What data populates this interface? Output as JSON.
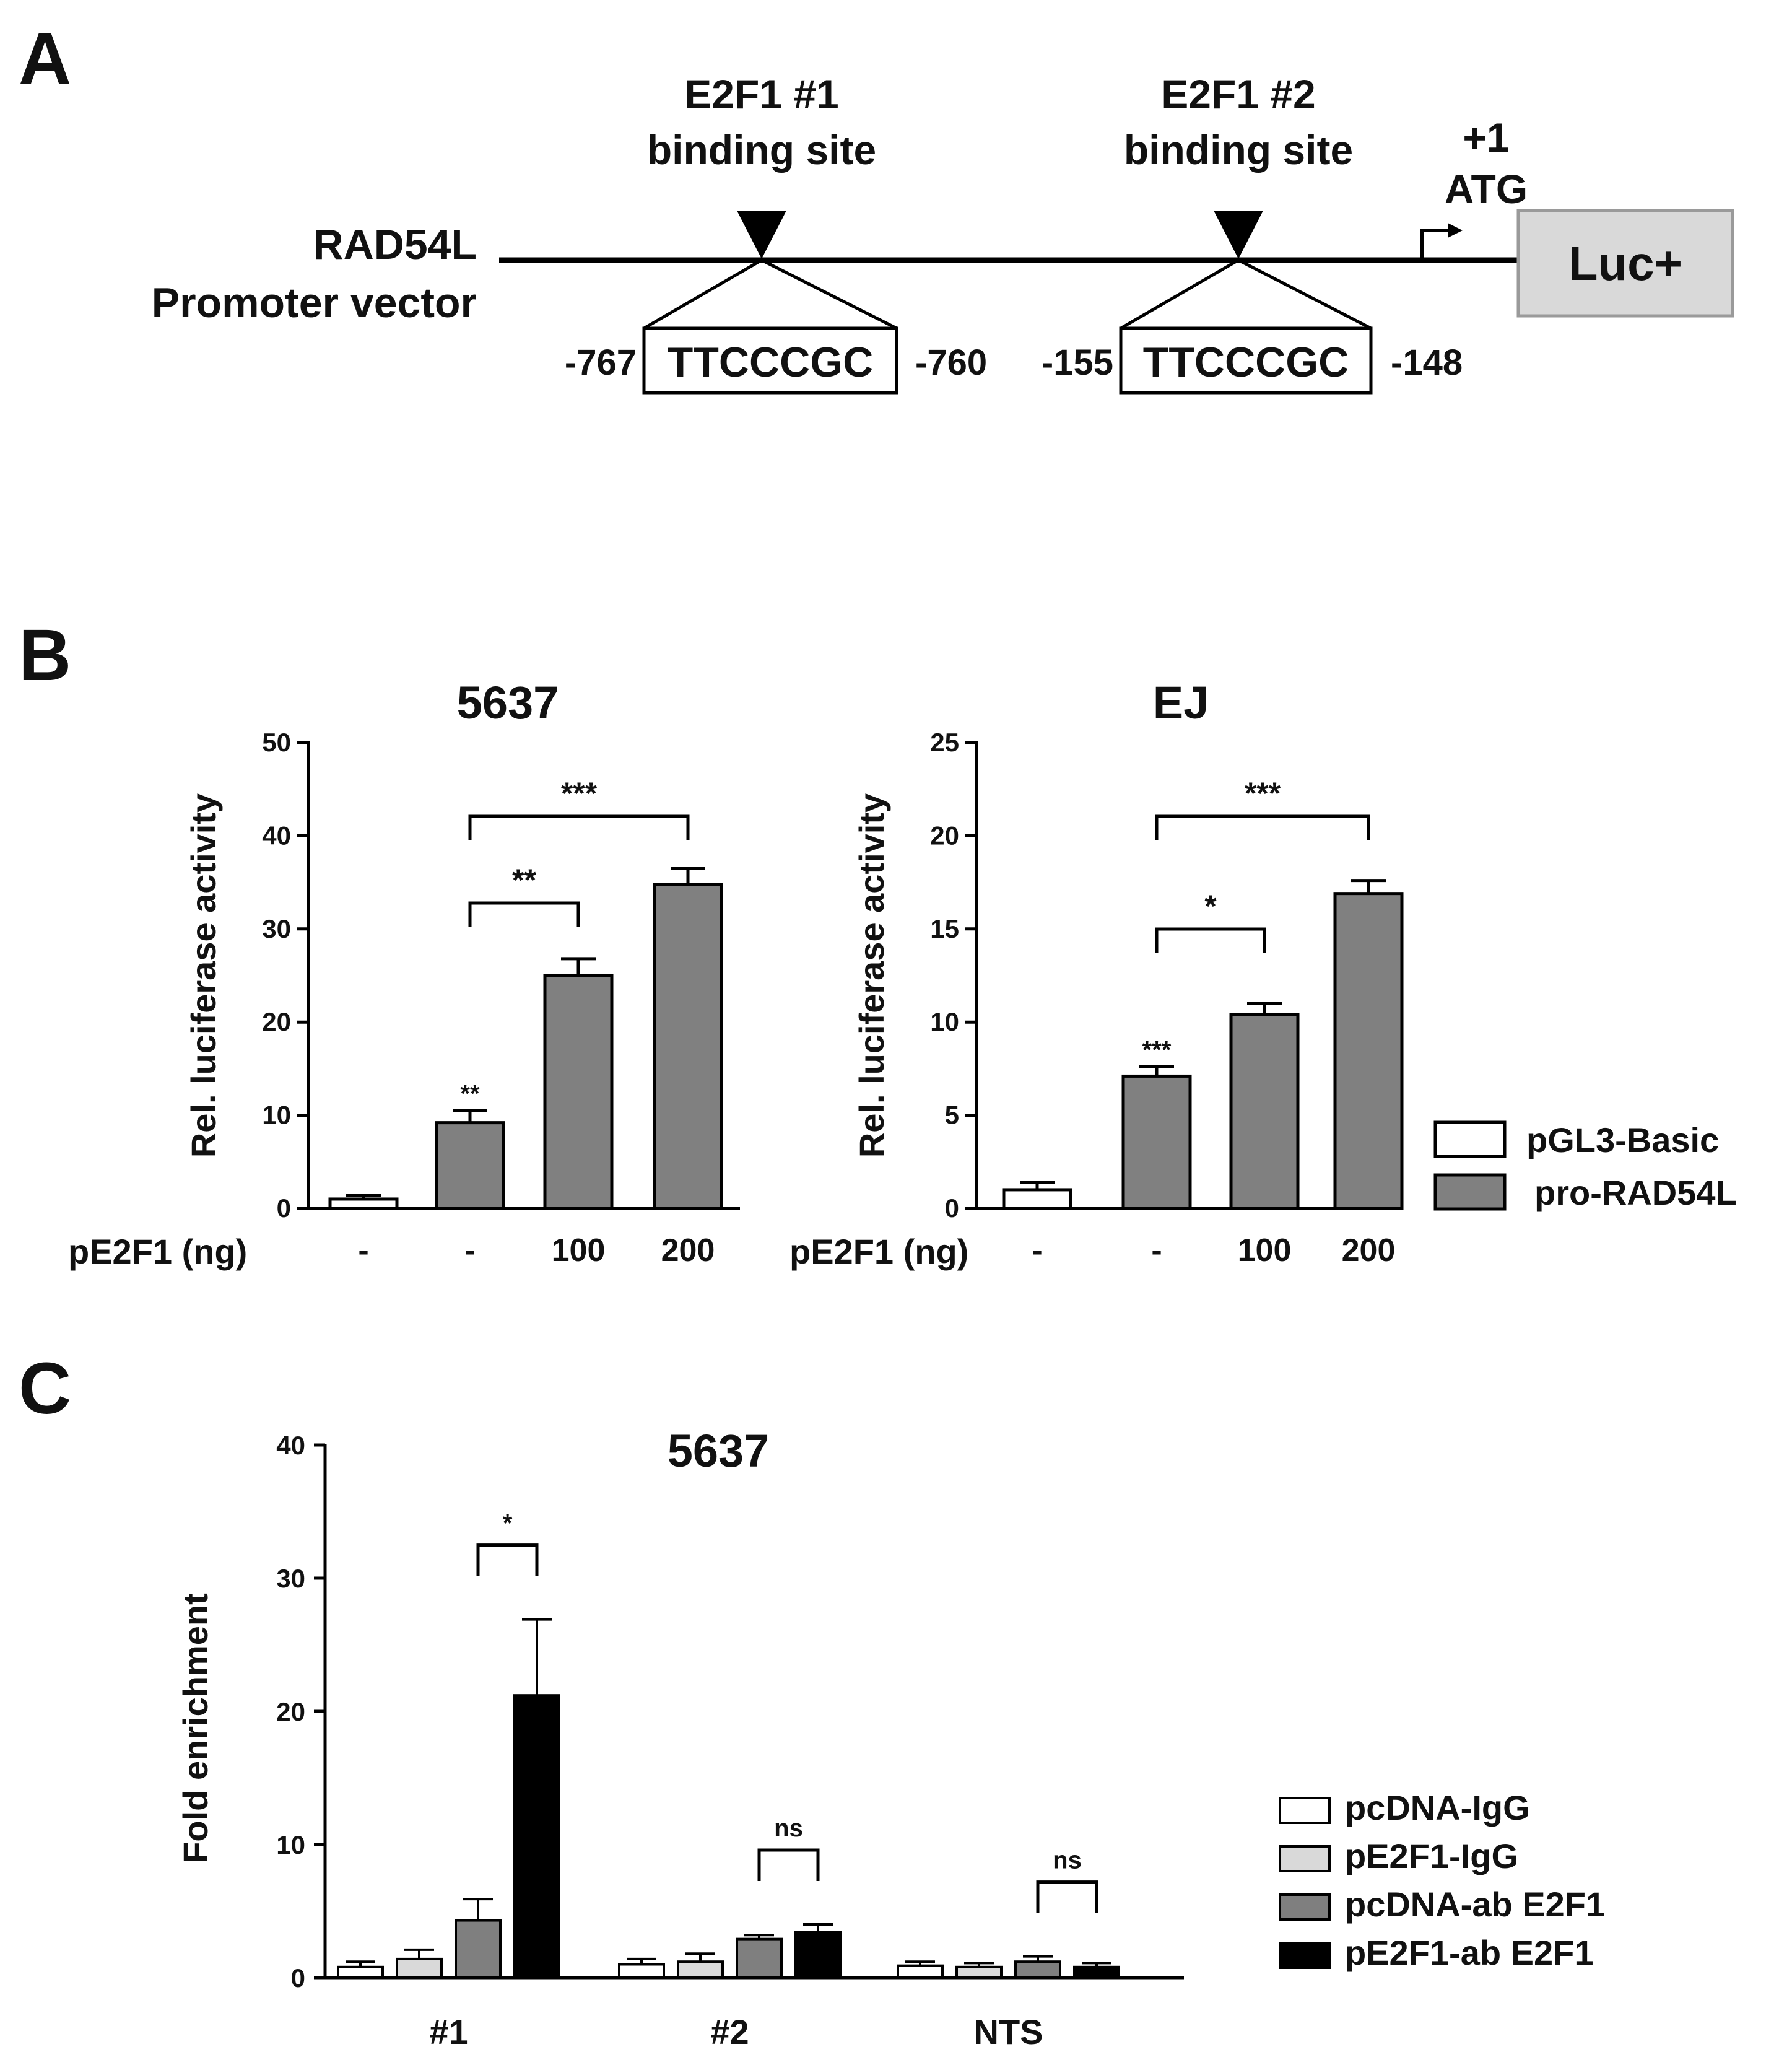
{
  "panel_a": {
    "letter": "A",
    "vector_label_1": "RAD54L",
    "vector_label_2": "Promoter vector",
    "site1": {
      "title": "E2F1 #1",
      "subtitle": "binding site",
      "sequence": "TTCCCGC",
      "start": "-767",
      "end": "-760"
    },
    "site2": {
      "title": "E2F1 #2",
      "subtitle": "binding site",
      "sequence": "TTCCCGC",
      "start": "-155",
      "end": "-148"
    },
    "tss_label_1": "+1",
    "tss_label_2": "ATG",
    "reporter": "Luc+"
  },
  "panel_b": {
    "letter": "B",
    "xlabel": "pE2F1 (ng)",
    "legend": [
      {
        "label": "pGL3-Basic",
        "color": "#ffffff"
      },
      {
        "label": "pro-RAD54L",
        "color": "#808080"
      }
    ]
  },
  "panel_c": {
    "letter": "C",
    "legend": [
      {
        "label": "pcDNA-IgG",
        "color": "#ffffff"
      },
      {
        "label": "pE2F1-IgG",
        "color": "#d9d9d9"
      },
      {
        "label": "pcDNA-ab E2F1",
        "color": "#7f7f7f"
      },
      {
        "label": "pE2F1-ab E2F1",
        "color": "#000000"
      }
    ]
  },
  "chart_data": [
    {
      "type": "bar",
      "title": "5637",
      "ylabel": "Rel. luciferase activity",
      "xlabel": "pE2F1 (ng)",
      "ylim": [
        0,
        50
      ],
      "yticks": [
        0,
        10,
        20,
        30,
        40,
        50
      ],
      "categories": [
        "-",
        "-",
        "100",
        "200"
      ],
      "values": [
        1,
        9.2,
        25,
        34.8
      ],
      "errors": [
        0.4,
        1.3,
        1.8,
        1.7
      ],
      "bar_colors": [
        "#ffffff",
        "#808080",
        "#808080",
        "#808080"
      ],
      "bar_labels": [
        "",
        "**",
        "",
        ""
      ],
      "brackets": [
        {
          "from": 1,
          "to": 2,
          "label": "**"
        },
        {
          "from": 1,
          "to": 3,
          "label": "***"
        }
      ]
    },
    {
      "type": "bar",
      "title": "EJ",
      "ylabel": "Rel. luciferase activity",
      "xlabel": "pE2F1 (ng)",
      "ylim": [
        0,
        25
      ],
      "yticks": [
        0,
        5,
        10,
        15,
        20,
        25
      ],
      "categories": [
        "-",
        "-",
        "100",
        "200"
      ],
      "values": [
        1,
        7.1,
        10.4,
        16.9
      ],
      "errors": [
        0.4,
        0.5,
        0.6,
        0.7
      ],
      "bar_colors": [
        "#ffffff",
        "#808080",
        "#808080",
        "#808080"
      ],
      "bar_labels": [
        "",
        "***",
        "",
        ""
      ],
      "brackets": [
        {
          "from": 1,
          "to": 2,
          "label": "*"
        },
        {
          "from": 1,
          "to": 3,
          "label": "***"
        }
      ]
    },
    {
      "type": "bar",
      "title": "5637",
      "ylabel": "Fold enrichment",
      "ylim": [
        0,
        40
      ],
      "yticks": [
        0,
        10,
        20,
        30,
        40
      ],
      "categories": [
        "#1",
        "#2",
        "NTS"
      ],
      "series": [
        {
          "name": "pcDNA-IgG",
          "color": "#ffffff",
          "values": [
            0.8,
            1.0,
            0.9
          ],
          "errors": [
            0.4,
            0.4,
            0.3
          ]
        },
        {
          "name": "pE2F1-IgG",
          "color": "#d9d9d9",
          "values": [
            1.4,
            1.2,
            0.8
          ],
          "errors": [
            0.7,
            0.6,
            0.3
          ]
        },
        {
          "name": "pcDNA-ab E2F1",
          "color": "#7f7f7f",
          "values": [
            4.3,
            2.9,
            1.2
          ],
          "errors": [
            1.6,
            0.3,
            0.4
          ]
        },
        {
          "name": "pE2F1-ab E2F1",
          "color": "#000000",
          "values": [
            21.2,
            3.4,
            0.8
          ],
          "errors": [
            5.7,
            0.6,
            0.3
          ]
        }
      ],
      "brackets": [
        {
          "category": 0,
          "from": 2,
          "to": 3,
          "label": "*"
        },
        {
          "category": 1,
          "from": 2,
          "to": 3,
          "label": "ns"
        },
        {
          "category": 2,
          "from": 2,
          "to": 3,
          "label": "ns"
        }
      ]
    }
  ]
}
